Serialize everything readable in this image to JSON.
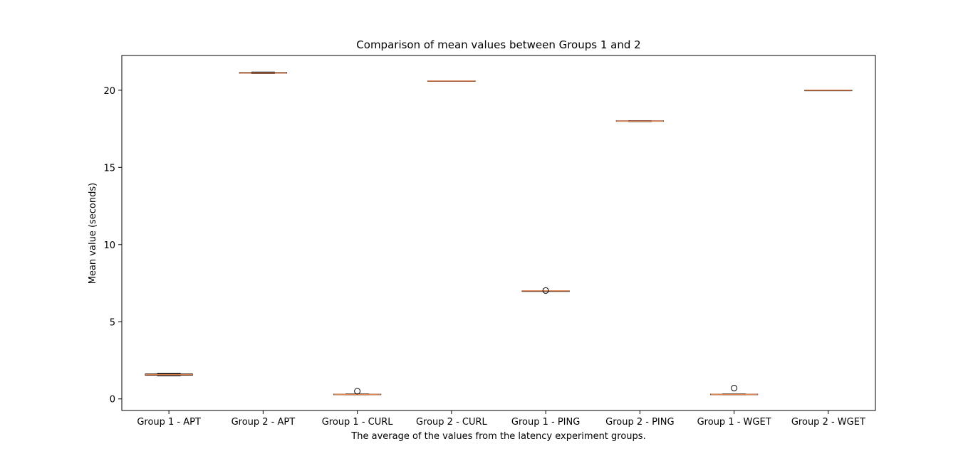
{
  "chart_data": {
    "type": "box",
    "title": "Comparison of mean values between Groups 1 and 2",
    "xlabel": "The average of the values from the latency experiment groups.",
    "ylabel": "Mean value (seconds)",
    "ylim": [
      -0.75,
      22.25
    ],
    "yticks": [
      0,
      5,
      10,
      15,
      20
    ],
    "grid": false,
    "categories": [
      "Group 1 - APT",
      "Group 2 - APT",
      "Group 1 - CURL",
      "Group 2 - CURL",
      "Group 1 - PING",
      "Group 2 - PING",
      "Group 1 - WGET",
      "Group 2 - WGET"
    ],
    "boxes": [
      {
        "whislo": 1.5,
        "q1": 1.53,
        "med": 1.57,
        "q3": 1.62,
        "whishi": 1.66,
        "fliers": []
      },
      {
        "whislo": 21.08,
        "q1": 21.1,
        "med": 21.12,
        "q3": 21.15,
        "whishi": 21.18,
        "fliers": []
      },
      {
        "whislo": 0.27,
        "q1": 0.28,
        "med": 0.29,
        "q3": 0.31,
        "whishi": 0.33,
        "fliers": [
          0.5
        ]
      },
      {
        "whislo": 20.6,
        "q1": 20.6,
        "med": 20.6,
        "q3": 20.61,
        "whishi": 20.61,
        "fliers": []
      },
      {
        "whislo": 7.0,
        "q1": 7.0,
        "med": 7.0,
        "q3": 7.0,
        "whishi": 7.0,
        "fliers": [
          7.02
        ]
      },
      {
        "whislo": 17.97,
        "q1": 17.99,
        "med": 18.0,
        "q3": 18.02,
        "whishi": 18.03,
        "fliers": []
      },
      {
        "whislo": 0.27,
        "q1": 0.28,
        "med": 0.29,
        "q3": 0.31,
        "whishi": 0.33,
        "fliers": [
          0.7
        ]
      },
      {
        "whislo": 19.98,
        "q1": 19.99,
        "med": 20.0,
        "q3": 20.0,
        "whishi": 20.01,
        "fliers": []
      }
    ],
    "colors": {
      "box": "#000000",
      "median": "#dd8452",
      "flier": "#000000"
    }
  }
}
